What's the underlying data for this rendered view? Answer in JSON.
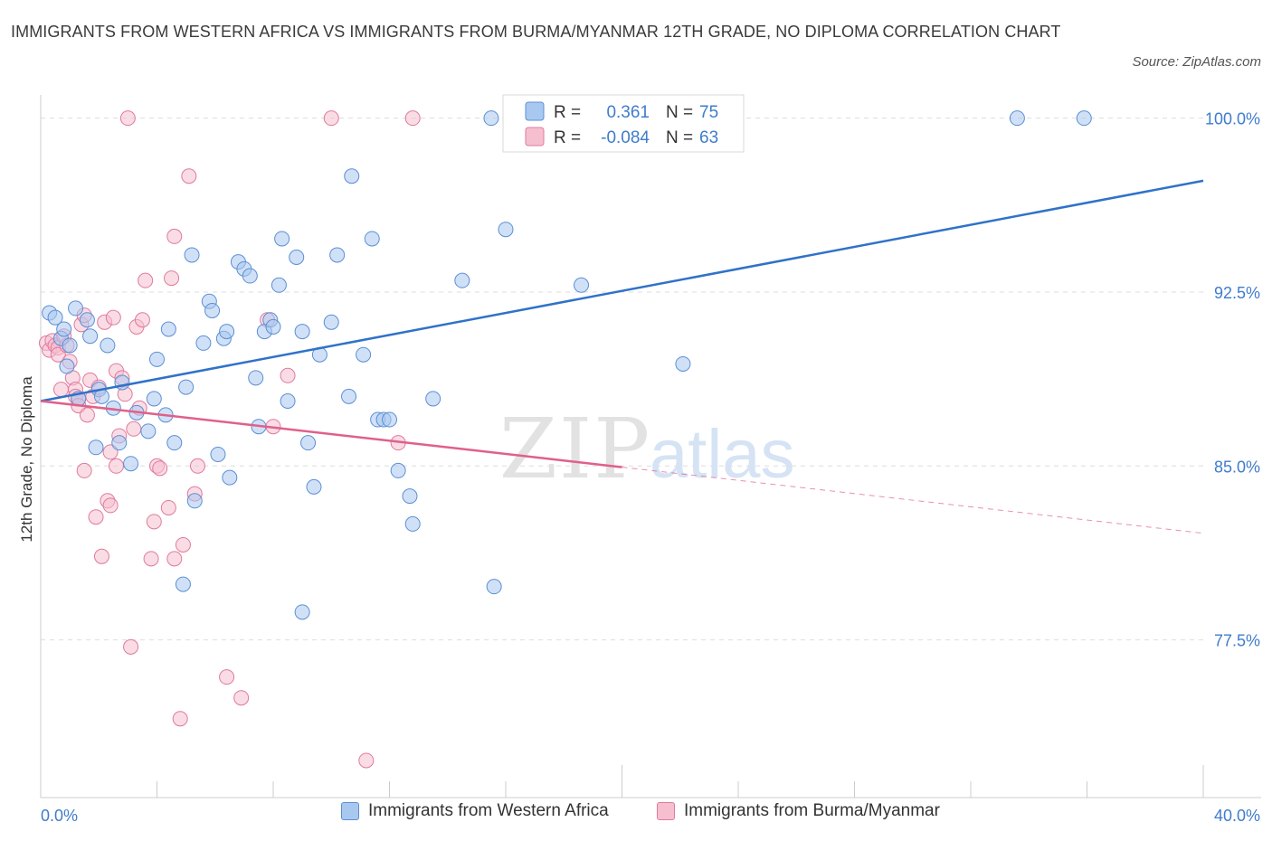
{
  "title": "IMMIGRANTS FROM WESTERN AFRICA VS IMMIGRANTS FROM BURMA/MYANMAR 12TH GRADE, NO DIPLOMA CORRELATION CHART",
  "source": "Source: ZipAtlas.com",
  "watermark": {
    "zip": "ZIP",
    "atlas": "atlas"
  },
  "colors": {
    "blue_fill": "#a9c8f0",
    "blue_stroke": "#5b8fd4",
    "blue_line": "#2f72c9",
    "pink_fill": "#f6bfd0",
    "pink_stroke": "#e07a9d",
    "pink_line": "#e0608a",
    "axis_text": "#3f7ccc",
    "grid": "#dddddd"
  },
  "legend_box": {
    "rows": [
      {
        "r_label": "R =",
        "r_value": "0.361",
        "n_label": "N =",
        "n_value": "75"
      },
      {
        "r_label": "R =",
        "r_value": "-0.084",
        "n_label": "N =",
        "n_value": "63"
      }
    ]
  },
  "chart_data": {
    "type": "scatter",
    "ylabel": "12th Grade, No Diploma",
    "xlim": [
      0,
      40
    ],
    "ylim": [
      70.7,
      101.0
    ],
    "x_tick_labels": [
      "0.0%",
      "40.0%"
    ],
    "y_ticks": [
      77.5,
      85.0,
      92.5,
      100.0
    ],
    "y_tick_labels": [
      "77.5%",
      "85.0%",
      "92.5%",
      "100.0%"
    ],
    "grid": true,
    "legend": "bottom",
    "series": [
      {
        "name": "Immigrants from Western Africa",
        "color": "blue",
        "trend": {
          "x": [
            0,
            40
          ],
          "y": [
            87.8,
            97.3
          ],
          "dashed_from": null
        },
        "points": [
          [
            0.3,
            91.6
          ],
          [
            0.5,
            91.4
          ],
          [
            0.7,
            90.5
          ],
          [
            0.9,
            89.3
          ],
          [
            1.0,
            90.2
          ],
          [
            1.3,
            87.9
          ],
          [
            1.6,
            91.3
          ],
          [
            1.7,
            90.6
          ],
          [
            2.0,
            88.3
          ],
          [
            2.1,
            88.0
          ],
          [
            2.5,
            87.5
          ],
          [
            2.7,
            86.0
          ],
          [
            2.8,
            88.6
          ],
          [
            3.1,
            85.1
          ],
          [
            3.3,
            87.3
          ],
          [
            3.7,
            86.5
          ],
          [
            3.9,
            87.9
          ],
          [
            4.0,
            89.6
          ],
          [
            4.3,
            87.2
          ],
          [
            4.4,
            90.9
          ],
          [
            4.6,
            86.0
          ],
          [
            4.9,
            79.9
          ],
          [
            5.0,
            88.4
          ],
          [
            5.2,
            94.1
          ],
          [
            5.3,
            83.5
          ],
          [
            5.6,
            90.3
          ],
          [
            5.8,
            92.1
          ],
          [
            5.9,
            91.7
          ],
          [
            6.1,
            85.5
          ],
          [
            6.3,
            90.5
          ],
          [
            6.4,
            90.8
          ],
          [
            6.5,
            84.5
          ],
          [
            6.8,
            93.8
          ],
          [
            7.0,
            93.5
          ],
          [
            7.2,
            93.2
          ],
          [
            7.4,
            88.8
          ],
          [
            7.5,
            86.7
          ],
          [
            7.7,
            90.8
          ],
          [
            7.9,
            91.3
          ],
          [
            8.0,
            91.0
          ],
          [
            8.2,
            92.8
          ],
          [
            8.3,
            94.8
          ],
          [
            8.5,
            87.8
          ],
          [
            8.8,
            94.0
          ],
          [
            9.0,
            90.8
          ],
          [
            9.2,
            86.0
          ],
          [
            9.4,
            84.1
          ],
          [
            9.6,
            89.8
          ],
          [
            10.0,
            91.2
          ],
          [
            10.2,
            94.1
          ],
          [
            10.6,
            88.0
          ],
          [
            10.7,
            97.5
          ],
          [
            11.1,
            89.8
          ],
          [
            11.4,
            94.8
          ],
          [
            11.6,
            87.0
          ],
          [
            11.8,
            87.0
          ],
          [
            12.0,
            87.0
          ],
          [
            12.3,
            84.8
          ],
          [
            12.7,
            83.7
          ],
          [
            12.8,
            82.5
          ],
          [
            13.5,
            87.9
          ],
          [
            14.5,
            93.0
          ],
          [
            15.5,
            100.0
          ],
          [
            15.6,
            79.8
          ],
          [
            16.0,
            95.2
          ],
          [
            17.0,
            100.0
          ],
          [
            18.6,
            92.8
          ],
          [
            22.1,
            89.4
          ],
          [
            33.6,
            100.0
          ],
          [
            35.9,
            100.0
          ],
          [
            1.2,
            91.8
          ],
          [
            0.8,
            90.9
          ],
          [
            1.9,
            85.8
          ],
          [
            2.3,
            90.2
          ],
          [
            9.0,
            78.7
          ]
        ]
      },
      {
        "name": "Immigrants from Burma/Myanmar",
        "color": "pink",
        "trend": {
          "x": [
            0,
            40
          ],
          "y": [
            87.8,
            82.1
          ],
          "dashed_from": 20
        },
        "points": [
          [
            0.2,
            90.3
          ],
          [
            0.3,
            90.0
          ],
          [
            0.4,
            90.4
          ],
          [
            0.5,
            90.2
          ],
          [
            0.6,
            90.1
          ],
          [
            0.6,
            89.8
          ],
          [
            0.7,
            88.3
          ],
          [
            0.8,
            90.6
          ],
          [
            0.9,
            90.2
          ],
          [
            1.0,
            89.5
          ],
          [
            1.1,
            88.8
          ],
          [
            1.2,
            88.3
          ],
          [
            1.2,
            88.0
          ],
          [
            1.3,
            87.9
          ],
          [
            1.3,
            87.6
          ],
          [
            1.4,
            91.1
          ],
          [
            1.5,
            91.5
          ],
          [
            1.5,
            84.8
          ],
          [
            1.6,
            87.2
          ],
          [
            1.7,
            88.7
          ],
          [
            1.8,
            88.0
          ],
          [
            1.9,
            82.8
          ],
          [
            2.0,
            88.4
          ],
          [
            2.1,
            81.1
          ],
          [
            2.2,
            91.2
          ],
          [
            2.3,
            83.5
          ],
          [
            2.4,
            85.6
          ],
          [
            2.4,
            83.3
          ],
          [
            2.5,
            91.4
          ],
          [
            2.6,
            85.0
          ],
          [
            2.6,
            89.1
          ],
          [
            2.7,
            86.3
          ],
          [
            2.8,
            88.8
          ],
          [
            2.9,
            88.1
          ],
          [
            3.1,
            77.2
          ],
          [
            3.2,
            86.6
          ],
          [
            3.3,
            91.0
          ],
          [
            3.4,
            87.5
          ],
          [
            3.5,
            91.3
          ],
          [
            3.6,
            93.0
          ],
          [
            3.8,
            81.0
          ],
          [
            3.9,
            82.6
          ],
          [
            4.0,
            85.0
          ],
          [
            4.1,
            84.9
          ],
          [
            4.4,
            83.2
          ],
          [
            4.5,
            93.1
          ],
          [
            4.6,
            81.0
          ],
          [
            4.6,
            94.9
          ],
          [
            4.8,
            74.1
          ],
          [
            4.9,
            81.6
          ],
          [
            5.1,
            97.5
          ],
          [
            5.3,
            83.8
          ],
          [
            5.4,
            85.0
          ],
          [
            6.4,
            75.9
          ],
          [
            6.9,
            75.0
          ],
          [
            7.8,
            91.3
          ],
          [
            8.0,
            86.7
          ],
          [
            8.5,
            88.9
          ],
          [
            10.0,
            100.0
          ],
          [
            11.2,
            72.3
          ],
          [
            12.3,
            86.0
          ],
          [
            12.8,
            100.0
          ],
          [
            3.0,
            100.0
          ]
        ]
      }
    ]
  }
}
